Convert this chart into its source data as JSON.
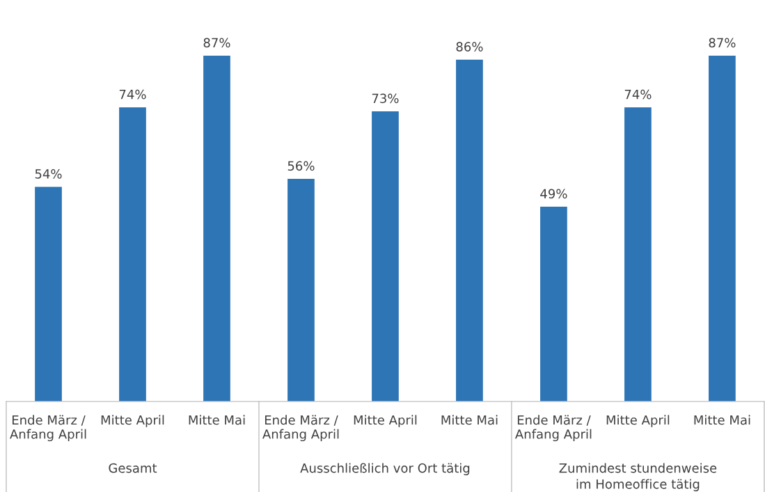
{
  "chart_data": {
    "type": "bar",
    "categories": [
      "Ende März /\nAnfang April",
      "Mitte April",
      "Mitte Mai",
      "Ende März /\nAnfang April",
      "Mitte April",
      "Mitte Mai",
      "Ende März /\nAnfang April",
      "Mitte April",
      "Mitte Mai"
    ],
    "values": [
      54,
      74,
      87,
      56,
      73,
      86,
      49,
      74,
      87
    ],
    "color": "#2e75b6",
    "data_labels": true,
    "value_labels": [
      "54%",
      "74%",
      "87%",
      "56%",
      "73%",
      "86%",
      "49%",
      "74%",
      "87%"
    ],
    "annotations": [
      "Gesamt",
      "Ausschließlich vor Ort tätig",
      "Zumindest stundenweise\nim Homeoffice tätig"
    ],
    "grid": false,
    "legend": false
  }
}
